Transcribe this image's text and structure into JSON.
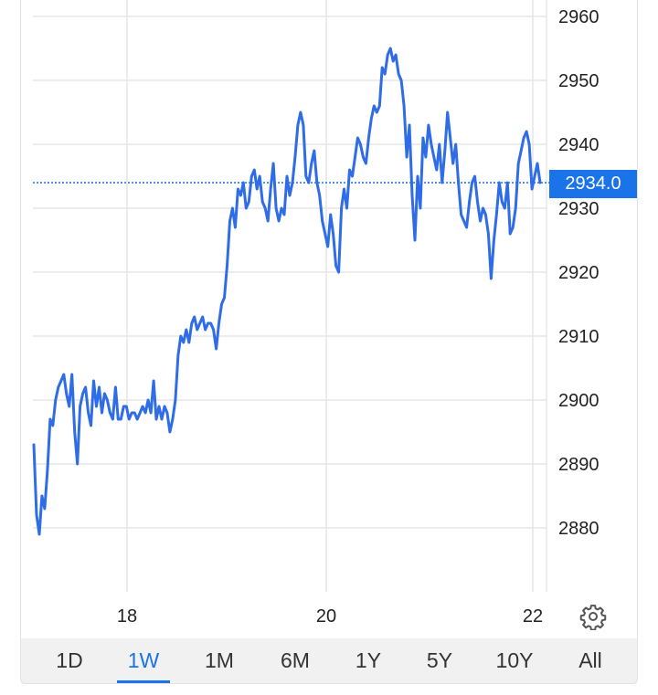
{
  "chart_data": {
    "type": "line",
    "ylim": [
      2870,
      2962
    ],
    "y_ticks": [
      "2960",
      "2950",
      "2940",
      "2930",
      "2920",
      "2910",
      "2900",
      "2890",
      "2880"
    ],
    "x_ticks": [
      "18",
      "20",
      "22"
    ],
    "current_price": 2934.0,
    "current_price_label": "2934.0",
    "series": [
      {
        "color": "#2f6ce8",
        "values": [
          2893,
          2882,
          2879,
          2885,
          2883,
          2889,
          2897,
          2896,
          2900,
          2902,
          2903,
          2904,
          2901,
          2899,
          2904,
          2895,
          2890,
          2899,
          2901,
          2902,
          2898,
          2896,
          2903,
          2899,
          2902,
          2898,
          2901,
          2900,
          2898,
          2897,
          2902,
          2897,
          2897,
          2899,
          2899,
          2897,
          2898,
          2898,
          2897,
          2898,
          2899,
          2898,
          2900,
          2898,
          2903,
          2897,
          2899,
          2897,
          2899,
          2898,
          2895,
          2897,
          2900,
          2907,
          2910,
          2909,
          2911,
          2909,
          2912,
          2913,
          2911,
          2912,
          2913,
          2911,
          2912,
          2912,
          2911,
          2908,
          2912,
          2915,
          2916,
          2921,
          2928,
          2930,
          2927,
          2933,
          2932,
          2934,
          2930,
          2931,
          2935,
          2936,
          2933,
          2935,
          2931,
          2930,
          2928,
          2933,
          2937,
          2930,
          2928,
          2930,
          2929,
          2935,
          2932,
          2934,
          2938,
          2943,
          2945,
          2943,
          2935,
          2934,
          2937,
          2939,
          2934,
          2932,
          2928,
          2926,
          2924,
          2929,
          2926,
          2921,
          2920,
          2930,
          2933,
          2930,
          2936,
          2935,
          2938,
          2941,
          2940,
          2938,
          2937,
          2941,
          2944,
          2946,
          2945,
          2946,
          2952,
          2951,
          2954,
          2955,
          2953,
          2954,
          2951,
          2950,
          2946,
          2938,
          2943,
          2932,
          2925,
          2935,
          2930,
          2941,
          2938,
          2943,
          2940,
          2938,
          2936,
          2940,
          2934,
          2939,
          2945,
          2941,
          2937,
          2940,
          2934,
          2929,
          2928,
          2927,
          2931,
          2934,
          2935,
          2931,
          2928,
          2930,
          2929,
          2926,
          2919,
          2925,
          2929,
          2934,
          2931,
          2930,
          2934,
          2926,
          2927,
          2930,
          2937,
          2939,
          2941,
          2942,
          2940,
          2933,
          2935,
          2937,
          2934
        ]
      }
    ]
  },
  "range_tabs": [
    "1D",
    "1W",
    "1M",
    "6M",
    "1Y",
    "5Y",
    "10Y",
    "All"
  ],
  "active_range": "1W",
  "colors": {
    "line": "#2f6ce8",
    "accent": "#1a73e8",
    "grid": "#e6e6e6"
  },
  "icons": {
    "settings": "gear-icon"
  }
}
